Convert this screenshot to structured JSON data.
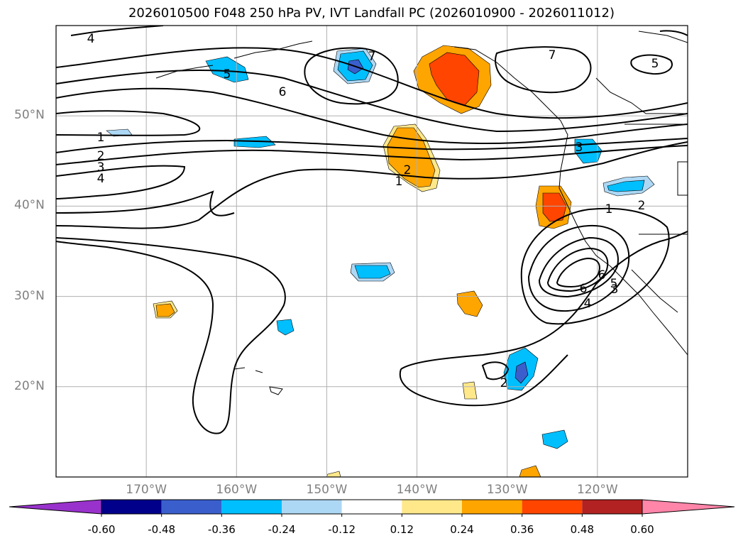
{
  "title": "2026010500 F048 250 hPa PV, IVT Landfall PC (2026010900 - 2026011012)",
  "colors": {
    "background": "#ffffff",
    "grid": "#b0b0b0",
    "contour": "#000000",
    "axis_label": "#808080"
  },
  "chart_data": {
    "type": "map",
    "projection": "PlateCarree",
    "extent_lon": [
      -180,
      -110
    ],
    "extent_lat": [
      10,
      60
    ],
    "lat_ticks": [
      {
        "value": 20,
        "label": "20°N"
      },
      {
        "value": 30,
        "label": "30°N"
      },
      {
        "value": 40,
        "label": "40°N"
      },
      {
        "value": 50,
        "label": "50°N"
      }
    ],
    "lon_ticks": [
      {
        "value": -170,
        "label": "170°W"
      },
      {
        "value": -160,
        "label": "160°W"
      },
      {
        "value": -150,
        "label": "150°W"
      },
      {
        "value": -140,
        "label": "140°W"
      },
      {
        "value": -130,
        "label": "130°W"
      },
      {
        "value": -120,
        "label": "120°W"
      }
    ],
    "filled_field": "IVT Landfall PC",
    "contour_field": "250 hPa PV",
    "contour_labels": [
      "4",
      "5",
      "6",
      "7",
      "7",
      "5",
      "6",
      "1",
      "2",
      "3",
      "4",
      "3",
      "2",
      "1",
      "1",
      "2",
      "6",
      "5",
      "3",
      "4",
      "2"
    ],
    "colorbar": {
      "levels": [
        "-0.60",
        "-0.48",
        "-0.36",
        "-0.24",
        "-0.12",
        "0.12",
        "0.24",
        "0.36",
        "0.48",
        "0.60"
      ],
      "colors": [
        "#9932cc",
        "#00008b",
        "#3a5fcd",
        "#00bfff",
        "#add8f5",
        "#ffffff",
        "#ffe88a",
        "#ffa500",
        "#ff4500",
        "#b22222",
        "#ff85a9"
      ],
      "extend": "both"
    }
  }
}
